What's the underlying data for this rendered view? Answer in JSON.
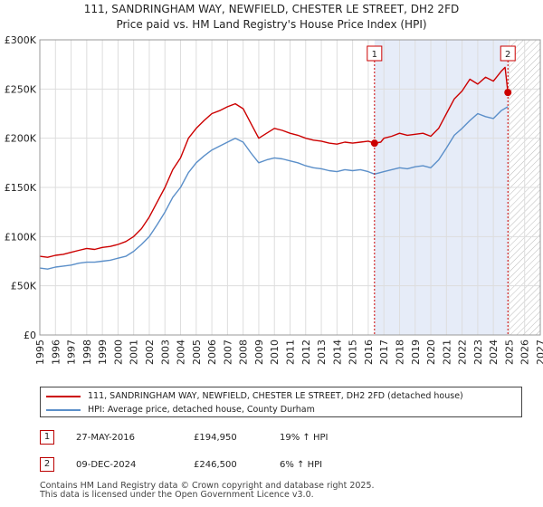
{
  "title_line1": "111, SANDRINGHAM WAY, NEWFIELD, CHESTER LE STREET, DH2 2FD",
  "title_line2": "Price paid vs. HM Land Registry's House Price Index (HPI)",
  "colors": {
    "property": "#cc0000",
    "hpi": "#5b8fc9",
    "shade": "#e6ecf8",
    "grid": "#dddddd"
  },
  "chart_data": {
    "type": "line",
    "ylim": [
      0,
      300000
    ],
    "xlim": [
      1995,
      2027
    ],
    "yticks": [
      0,
      50000,
      100000,
      150000,
      200000,
      250000,
      300000
    ],
    "ytick_labels": [
      "£0",
      "£50K",
      "£100K",
      "£150K",
      "£200K",
      "£250K",
      "£300K"
    ],
    "xticks": [
      1995,
      1996,
      1997,
      1998,
      1999,
      2000,
      2001,
      2002,
      2003,
      2004,
      2005,
      2006,
      2007,
      2008,
      2009,
      2010,
      2011,
      2012,
      2013,
      2014,
      2015,
      2016,
      2017,
      2018,
      2019,
      2020,
      2021,
      2022,
      2023,
      2024,
      2025,
      2026,
      2027
    ],
    "xtick_labels": [
      "1995",
      "1996",
      "1997",
      "1998",
      "1999",
      "2000",
      "2001",
      "2002",
      "2003",
      "2004",
      "2005",
      "2006",
      "2007",
      "2008",
      "2009",
      "2010",
      "2011",
      "2012",
      "2013",
      "2014",
      "2015",
      "2016",
      "2017",
      "2018",
      "2019",
      "2020",
      "2021",
      "2022",
      "2023",
      "2024",
      "2025",
      "2026",
      "2027"
    ],
    "shaded_region": [
      2016.4,
      2024.93
    ],
    "future_hatch_start": 2025.0,
    "series": [
      {
        "name": "111, SANDRINGHAM WAY, NEWFIELD, CHESTER LE STREET, DH2 2FD (detached house)",
        "color_key": "property",
        "x": [
          1995,
          1995.5,
          1996,
          1996.5,
          1997,
          1997.5,
          1998,
          1998.5,
          1999,
          1999.5,
          2000,
          2000.5,
          2001,
          2001.5,
          2002,
          2002.5,
          2003,
          2003.5,
          2004,
          2004.5,
          2005,
          2005.5,
          2006,
          2006.5,
          2007,
          2007.5,
          2008,
          2008.5,
          2009,
          2009.5,
          2010,
          2010.5,
          2011,
          2011.5,
          2012,
          2012.5,
          2013,
          2013.5,
          2014,
          2014.5,
          2015,
          2015.5,
          2016,
          2016.4,
          2016.8,
          2017,
          2017.5,
          2018,
          2018.5,
          2019,
          2019.5,
          2020,
          2020.5,
          2021,
          2021.5,
          2022,
          2022.5,
          2023,
          2023.5,
          2024,
          2024.5,
          2024.75,
          2024.93
        ],
        "values": [
          80000,
          79000,
          81000,
          82000,
          84000,
          86000,
          88000,
          87000,
          89000,
          90000,
          92000,
          95000,
          100000,
          108000,
          120000,
          135000,
          150000,
          168000,
          180000,
          200000,
          210000,
          218000,
          225000,
          228000,
          232000,
          235000,
          230000,
          215000,
          200000,
          205000,
          210000,
          208000,
          205000,
          203000,
          200000,
          198000,
          197000,
          195000,
          194000,
          196000,
          195000,
          196000,
          197000,
          194950,
          196000,
          200000,
          202000,
          205000,
          203000,
          204000,
          205000,
          202000,
          210000,
          225000,
          240000,
          248000,
          260000,
          255000,
          262000,
          258000,
          268000,
          272000,
          246500
        ]
      },
      {
        "name": "HPI: Average price, detached house, County Durham",
        "color_key": "hpi",
        "x": [
          1995,
          1995.5,
          1996,
          1996.5,
          1997,
          1997.5,
          1998,
          1998.5,
          1999,
          1999.5,
          2000,
          2000.5,
          2001,
          2001.5,
          2002,
          2002.5,
          2003,
          2003.5,
          2004,
          2004.5,
          2005,
          2005.5,
          2006,
          2006.5,
          2007,
          2007.5,
          2008,
          2008.5,
          2009,
          2009.5,
          2010,
          2010.5,
          2011,
          2011.5,
          2012,
          2012.5,
          2013,
          2013.5,
          2014,
          2014.5,
          2015,
          2015.5,
          2016,
          2016.4,
          2017,
          2017.5,
          2018,
          2018.5,
          2019,
          2019.5,
          2020,
          2020.5,
          2021,
          2021.5,
          2022,
          2022.5,
          2023,
          2023.5,
          2024,
          2024.5,
          2024.93
        ],
        "values": [
          68000,
          67000,
          69000,
          70000,
          71000,
          73000,
          74000,
          74000,
          75000,
          76000,
          78000,
          80000,
          85000,
          92000,
          100000,
          112000,
          125000,
          140000,
          150000,
          165000,
          175000,
          182000,
          188000,
          192000,
          196000,
          200000,
          196000,
          185000,
          175000,
          178000,
          180000,
          179000,
          177000,
          175000,
          172000,
          170000,
          169000,
          167000,
          166000,
          168000,
          167000,
          168000,
          166000,
          163500,
          166000,
          168000,
          170000,
          169000,
          171000,
          172000,
          170000,
          178000,
          190000,
          203000,
          210000,
          218000,
          225000,
          222000,
          220000,
          228000,
          232000
        ]
      }
    ],
    "annotations": [
      {
        "label": "1",
        "x": 2016.4,
        "value": 194950
      },
      {
        "label": "2",
        "x": 2024.93,
        "value": 246500
      }
    ]
  },
  "legend": {
    "property_label": "111, SANDRINGHAM WAY, NEWFIELD, CHESTER LE STREET, DH2 2FD (detached house)",
    "hpi_label": "HPI: Average price, detached house, County Durham"
  },
  "sales": [
    {
      "num": "1",
      "date": "27-MAY-2016",
      "price": "£194,950",
      "hpi": "19% ↑ HPI"
    },
    {
      "num": "2",
      "date": "09-DEC-2024",
      "price": "£246,500",
      "hpi": "6% ↑ HPI"
    }
  ],
  "footer_line1": "Contains HM Land Registry data © Crown copyright and database right 2025.",
  "footer_line2": "This data is licensed under the Open Government Licence v3.0."
}
